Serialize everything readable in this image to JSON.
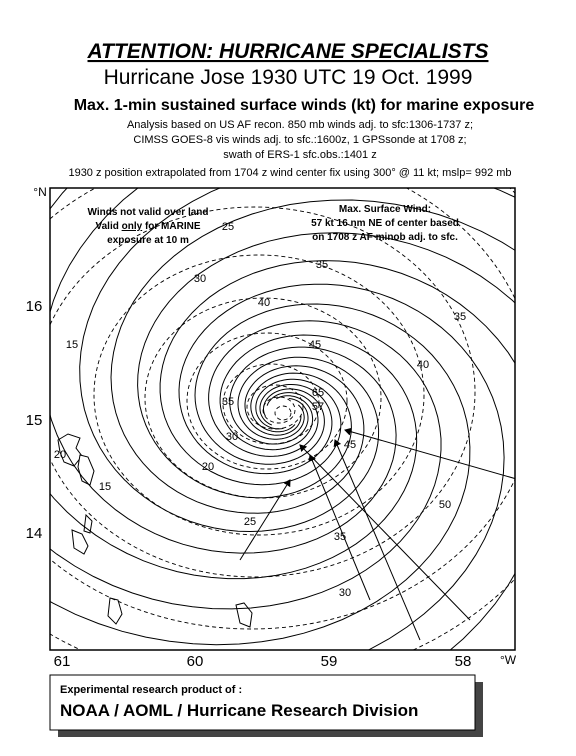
{
  "header": {
    "title": "ATTENTION: HURRICANE SPECIALISTS",
    "subtitle": "Hurricane Jose  1930 UTC 19 Oct. 1999",
    "heading": "Max. 1-min sustained surface winds (kt) for marine exposure",
    "notes": [
      "Analysis based on US AF recon. 850 mb winds adj. to sfc:1306-1737 z;",
      "CIMSS GOES-8 vis winds adj. to sfc.:1600z, 1 GPSsonde at 1708 z;",
      "swath of ERS-1 sfc.obs.:1401 z"
    ],
    "position": "1930 z position extrapolated from  1704 z wind center fix using  300° @  11 kt; mslp= 992 mb"
  },
  "map": {
    "lat_unit": "°N",
    "lat_labels": [
      "16",
      "15",
      "14"
    ],
    "lon_unit": "°W",
    "lon_labels": [
      "61",
      "60",
      "59",
      "58"
    ],
    "land_note": [
      "Winds not valid over land",
      "Valid ",
      "only",
      " for MARINE",
      "exposure at 10 m"
    ],
    "max_wind_note": [
      "Max. Surface Wind:",
      "57 kt  16 nm NE of center based",
      "on 1708 z AF minob adj. to sfc."
    ],
    "contour_labels": [
      "25",
      "30",
      "35",
      "40",
      "35",
      "45",
      "40",
      "15",
      "35",
      "30",
      "20",
      "15",
      "25",
      "20",
      "65",
      "57",
      "45",
      "50",
      "30",
      "35"
    ]
  },
  "footer": {
    "line1": "Experimental research product of :",
    "line2": "NOAA / AOML / Hurricane Research Division"
  }
}
